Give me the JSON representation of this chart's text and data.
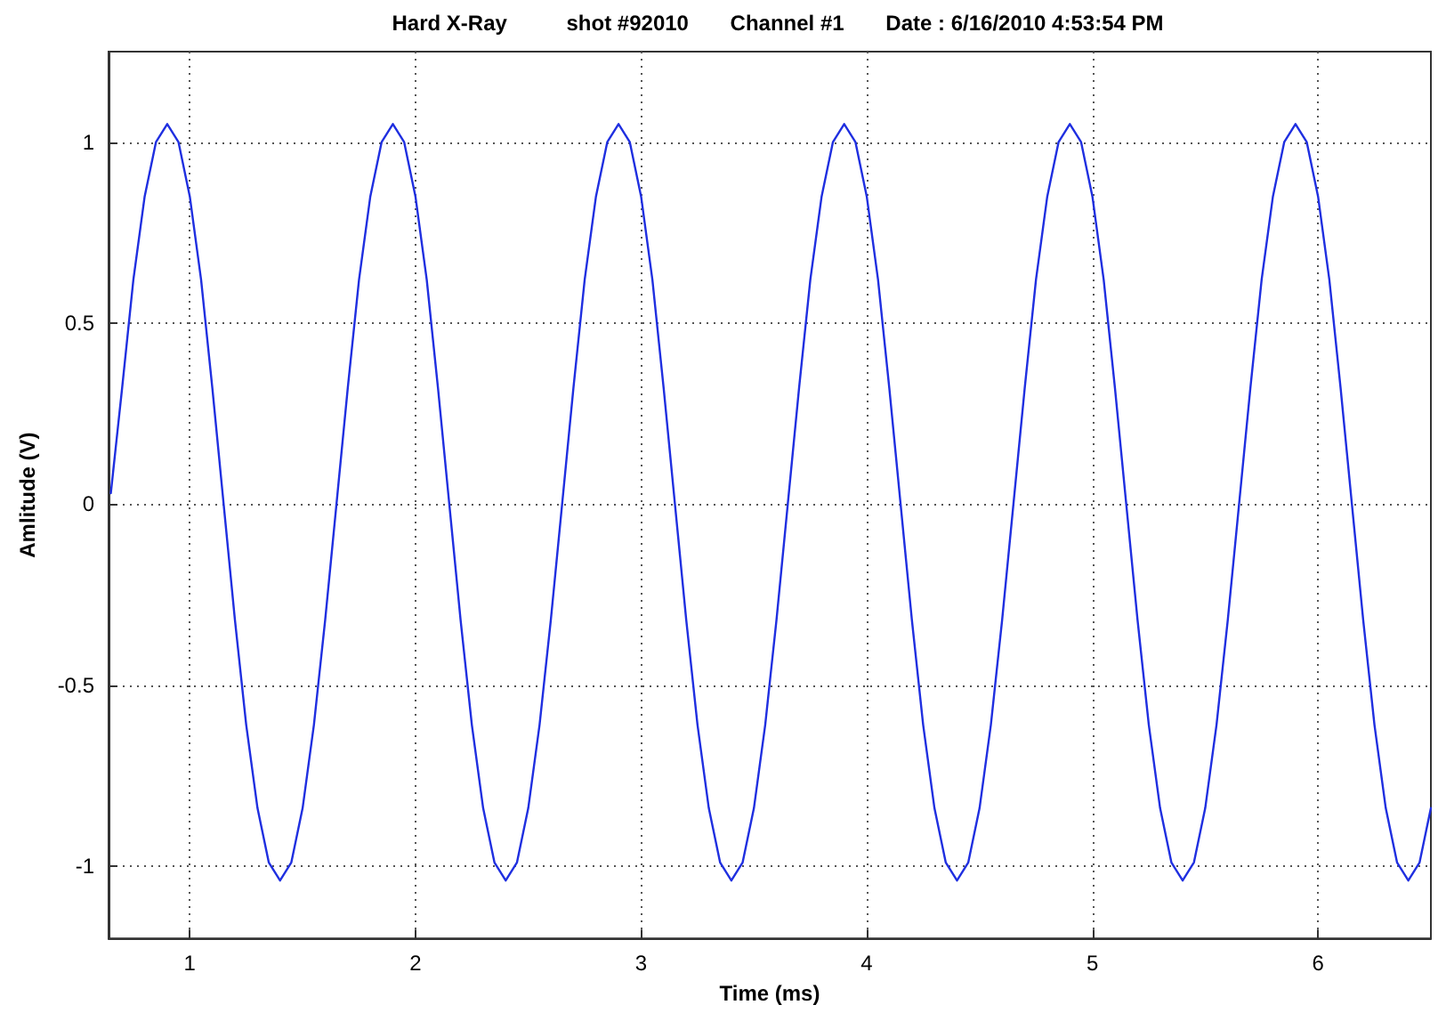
{
  "chart_data": {
    "type": "line",
    "title": "Hard X-Ray          shot #92010       Channel #1       Date : 6/16/2010 4:53:54 PM",
    "xlabel": "Time (ms)",
    "ylabel": "Amlitude (V)",
    "x": [
      0.65,
      0.7,
      0.75,
      0.8,
      0.85,
      0.9,
      0.95,
      1.0,
      1.05,
      1.1,
      1.15,
      1.2,
      1.25,
      1.3,
      1.35,
      1.4,
      1.45,
      1.5,
      1.55,
      1.6,
      1.65,
      1.7,
      1.75,
      1.8,
      1.85,
      1.9,
      1.95,
      2.0,
      2.05,
      2.1,
      2.15,
      2.2,
      2.25,
      2.3,
      2.35,
      2.4,
      2.45,
      2.5,
      2.55,
      2.6,
      2.65,
      2.7,
      2.75,
      2.8,
      2.85,
      2.9,
      2.95,
      3.0,
      3.05,
      3.1,
      3.15,
      3.2,
      3.25,
      3.3,
      3.35,
      3.4,
      3.45,
      3.5,
      3.55,
      3.6,
      3.65,
      3.7,
      3.75,
      3.8,
      3.85,
      3.9,
      3.95,
      4.0,
      4.05,
      4.1,
      4.15,
      4.2,
      4.25,
      4.3,
      4.35,
      4.4,
      4.45,
      4.5,
      4.55,
      4.6,
      4.65,
      4.7,
      4.75,
      4.8,
      4.85,
      4.9,
      4.95,
      5.0,
      5.05,
      5.1,
      5.15,
      5.2,
      5.25,
      5.3,
      5.35,
      5.4,
      5.45,
      5.5,
      5.55,
      5.6,
      5.65,
      5.7,
      5.75,
      5.8,
      5.85,
      5.9,
      5.95,
      6.0,
      6.05,
      6.1,
      6.15,
      6.2,
      6.25,
      6.3,
      6.35,
      6.4,
      6.45,
      6.5
    ],
    "series": [
      {
        "color": "#1f2fe0",
        "values": [
          0.03,
          0.32,
          0.62,
          0.85,
          1.0,
          1.05,
          1.0,
          0.85,
          0.62,
          0.32,
          0,
          -0.32,
          -0.61,
          -0.84,
          -0.99,
          -1.04,
          -0.99,
          -0.84,
          -0.61,
          -0.32,
          0,
          0.32,
          0.62,
          0.85,
          1.0,
          1.05,
          1.0,
          0.85,
          0.62,
          0.32,
          0,
          -0.32,
          -0.61,
          -0.84,
          -0.99,
          -1.04,
          -0.99,
          -0.84,
          -0.61,
          -0.32,
          0,
          0.32,
          0.62,
          0.85,
          1.0,
          1.05,
          1.0,
          0.85,
          0.62,
          0.32,
          0,
          -0.32,
          -0.61,
          -0.84,
          -0.99,
          -1.04,
          -0.99,
          -0.84,
          -0.61,
          -0.32,
          0,
          0.32,
          0.62,
          0.85,
          1.0,
          1.05,
          1.0,
          0.85,
          0.62,
          0.32,
          0,
          -0.32,
          -0.61,
          -0.84,
          -0.99,
          -1.04,
          -0.99,
          -0.84,
          -0.61,
          -0.32,
          0,
          0.32,
          0.62,
          0.85,
          1.0,
          1.05,
          1.0,
          0.85,
          0.62,
          0.32,
          0,
          -0.32,
          -0.61,
          -0.84,
          -0.99,
          -1.04,
          -0.99,
          -0.84,
          -0.61,
          -0.32,
          0,
          0.32,
          0.62,
          0.85,
          1.0,
          1.05,
          1.0,
          0.85,
          0.62,
          0.32,
          0,
          -0.32,
          -0.61,
          -0.84,
          -0.99,
          -1.04,
          -0.99,
          -0.84
        ]
      }
    ],
    "xlim": [
      0.64,
      6.5
    ],
    "xticks": [
      1,
      2,
      3,
      4,
      5,
      6
    ],
    "ylim": [
      -1.2,
      1.25
    ],
    "yticks": [
      -1,
      -0.5,
      0,
      0.5,
      1
    ],
    "grid": true,
    "marker": "none",
    "line_style": "solid"
  }
}
